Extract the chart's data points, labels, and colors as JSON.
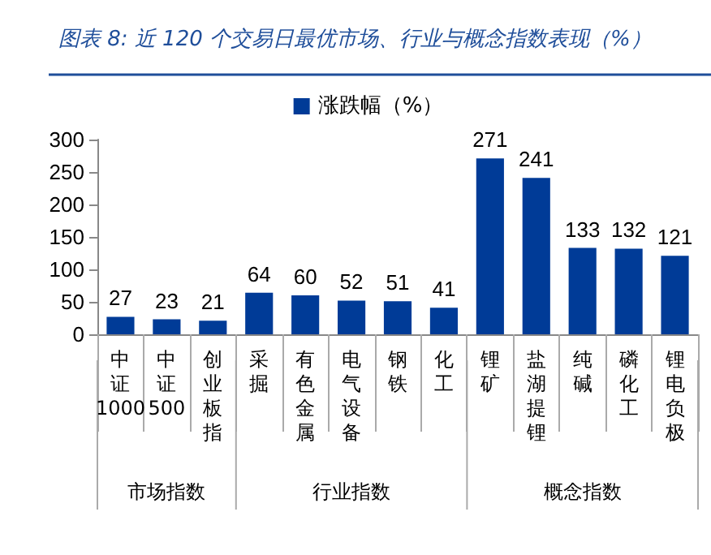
{
  "chart_data": {
    "type": "bar",
    "title": "图表 8: 近 120 个交易日最优市场、行业与概念指数表现（%）",
    "categories": [
      "中证1000",
      "中证500",
      "创业板指",
      "采掘",
      "有色金属",
      "电气设备",
      "钢铁",
      "化工",
      "锂矿",
      "盐湖提锂",
      "纯碱",
      "磷化工",
      "锂电负极"
    ],
    "series": [
      {
        "name": "涨跌幅（%）",
        "color": "#003b97",
        "values": [
          27,
          23,
          21,
          64,
          60,
          52,
          51,
          41,
          271,
          241,
          133,
          132,
          121
        ]
      }
    ],
    "ylim": [
      0,
      300
    ],
    "yticks": [
      0,
      50,
      100,
      150,
      200,
      250,
      300
    ],
    "grid": false,
    "legend": "top",
    "data_labels": true,
    "annotations": [
      "市场指数",
      "行业指数",
      "概念指数"
    ]
  }
}
